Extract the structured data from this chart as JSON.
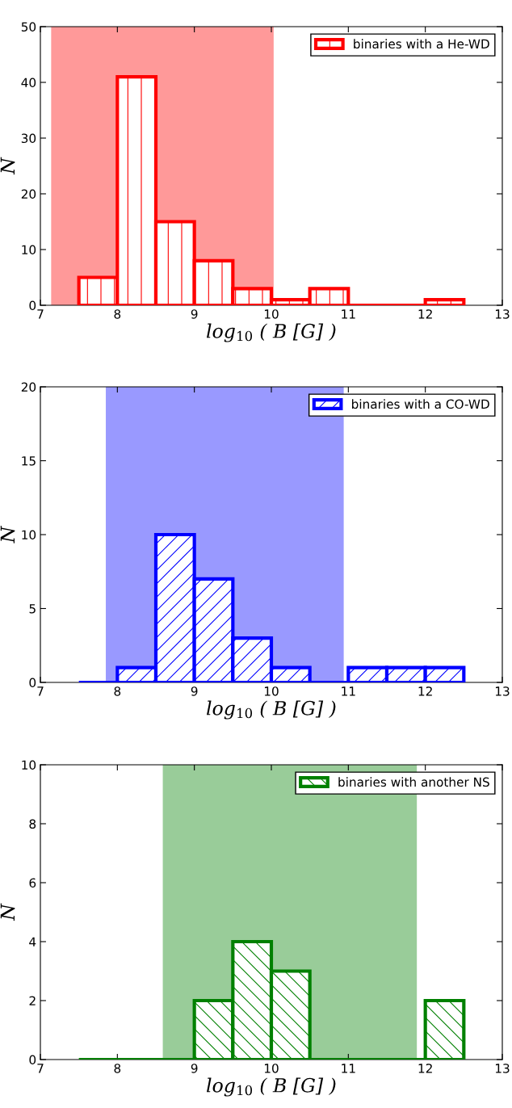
{
  "chart_data": [
    {
      "type": "histogram",
      "xlabel": "log$_{10}$ ( B [G] )",
      "ylabel": "N",
      "bins": [
        7.5,
        8,
        8.5,
        9,
        9.5,
        10,
        10.5,
        11,
        11.5,
        12,
        12.5
      ],
      "series": [
        {
          "name": "binaries with a He-WD",
          "color": "#ff0000",
          "values": [
            5,
            41,
            15,
            8,
            3,
            1,
            3,
            0,
            0,
            1
          ]
        }
      ],
      "xlim": [
        7,
        13
      ],
      "xticks": [
        7,
        8,
        9,
        10,
        11,
        12,
        13
      ],
      "ylim": [
        0,
        50
      ],
      "yticks": [
        0,
        10,
        20,
        30,
        40,
        50
      ],
      "bands": [
        {
          "axis": "x",
          "from": 7.14,
          "to": 10.03,
          "color": "#ff9999"
        }
      ],
      "legend": "top right",
      "grid": false
    },
    {
      "type": "histogram",
      "xlabel": "log$_{10}$ ( B [G] )",
      "ylabel": "N",
      "bins": [
        7.5,
        8,
        8.5,
        9,
        9.5,
        10,
        10.5,
        11,
        11.5,
        12,
        12.5
      ],
      "series": [
        {
          "name": "binaries with a CO-WD",
          "color": "#0000ff",
          "values": [
            0,
            1,
            10,
            7,
            3,
            1,
            0,
            1,
            1,
            1
          ]
        }
      ],
      "xlim": [
        7,
        13
      ],
      "xticks": [
        7,
        8,
        9,
        10,
        11,
        12,
        13
      ],
      "ylim": [
        0,
        20
      ],
      "yticks": [
        0,
        5,
        10,
        15,
        20
      ],
      "bands": [
        {
          "axis": "x",
          "from": 7.85,
          "to": 10.94,
          "color": "#9999ff"
        }
      ],
      "legend": "top right",
      "grid": false
    },
    {
      "type": "histogram",
      "xlabel": "log$_{10}$ ( B [G] )",
      "ylabel": "N",
      "bins": [
        7.5,
        8,
        8.5,
        9,
        9.5,
        10,
        10.5,
        11,
        11.5,
        12,
        12.5
      ],
      "series": [
        {
          "name": "binaries with another NS",
          "color": "#008000",
          "values": [
            0,
            0,
            0,
            2,
            4,
            3,
            0,
            0,
            0,
            2
          ]
        }
      ],
      "xlim": [
        7,
        13
      ],
      "xticks": [
        7,
        8,
        9,
        10,
        11,
        12,
        13
      ],
      "ylim": [
        0,
        10
      ],
      "yticks": [
        0,
        2,
        4,
        6,
        8,
        10
      ],
      "bands": [
        {
          "axis": "x",
          "from": 8.59,
          "to": 11.89,
          "color": "#99cc99"
        }
      ],
      "legend": "top right",
      "grid": false
    }
  ]
}
